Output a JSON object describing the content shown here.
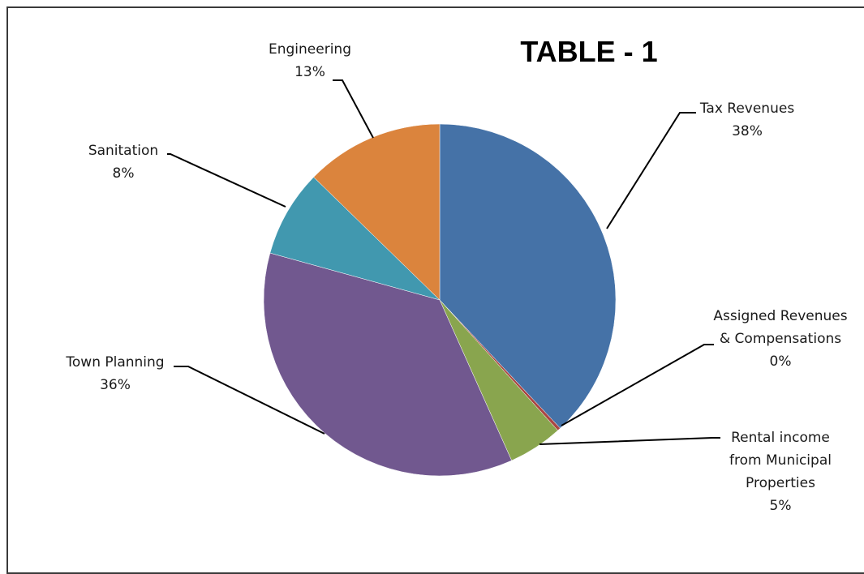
{
  "chart_data": {
    "type": "pie",
    "title": "TABLE - 1",
    "slices": [
      {
        "label": [
          "Tax Revenues"
        ],
        "pct_label": "38%",
        "value": 38.0,
        "color": "#4572a7"
      },
      {
        "label": [
          "Assigned Revenues",
          "& Compensations"
        ],
        "pct_label": "0%",
        "value": 0.3,
        "color": "#aa4643"
      },
      {
        "label": [
          "Rental income",
          "from Municipal",
          "Properties"
        ],
        "pct_label": "5%",
        "value": 5.0,
        "color": "#89a54e"
      },
      {
        "label": [
          "Town Planning"
        ],
        "pct_label": "36%",
        "value": 36.0,
        "color": "#71588f"
      },
      {
        "label": [
          "Sanitation"
        ],
        "pct_label": "8%",
        "value": 8.0,
        "color": "#4198af"
      },
      {
        "label": [
          "Engineering"
        ],
        "pct_label": "13%",
        "value": 12.7,
        "color": "#db843d"
      }
    ],
    "legend": "none",
    "data_labels": "outside with leader lines"
  }
}
